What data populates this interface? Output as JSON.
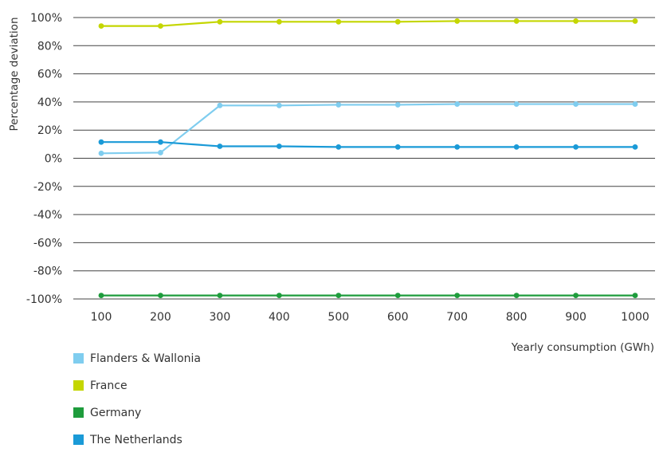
{
  "chart_data": {
    "type": "line",
    "title": "",
    "xlabel": "Yearly consumption (GWh)",
    "ylabel": "Percentage deviation",
    "x": [
      100,
      200,
      300,
      400,
      500,
      600,
      700,
      800,
      900,
      1000
    ],
    "x_tick_labels": [
      "100",
      "200",
      "300",
      "400",
      "500",
      "600",
      "700",
      "800",
      "900",
      "1000"
    ],
    "ylim": [
      -100,
      100
    ],
    "y_ticks": [
      100,
      80,
      60,
      40,
      20,
      0,
      -20,
      -40,
      -60,
      -80,
      -100
    ],
    "y_tick_labels": [
      "100%",
      "80%",
      "60%",
      "40%",
      "20%",
      "0%",
      "-20%",
      "-40%",
      "-60%",
      "-80%",
      "-100%"
    ],
    "grid": "horizontal",
    "legend_position": "bottom-left",
    "series": [
      {
        "name": "Flanders & Wallonia",
        "color": "#7fcdef",
        "values": [
          3.5,
          4,
          37.5,
          37.5,
          38,
          38,
          38.5,
          38.5,
          38.5,
          38.5
        ]
      },
      {
        "name": "France",
        "color": "#c4d600",
        "values": [
          94,
          94,
          97,
          97,
          97,
          97,
          97.5,
          97.5,
          97.5,
          97.5
        ]
      },
      {
        "name": "Germany",
        "color": "#1e9c3c",
        "values": [
          -97.5,
          -97.5,
          -97.5,
          -97.5,
          -97.5,
          -97.5,
          -97.5,
          -97.5,
          -97.5,
          -97.5
        ]
      },
      {
        "name": "The Netherlands",
        "color": "#1a9ad7",
        "values": [
          11.5,
          11.5,
          8.5,
          8.5,
          8,
          8,
          8,
          8,
          8,
          8
        ]
      }
    ]
  }
}
